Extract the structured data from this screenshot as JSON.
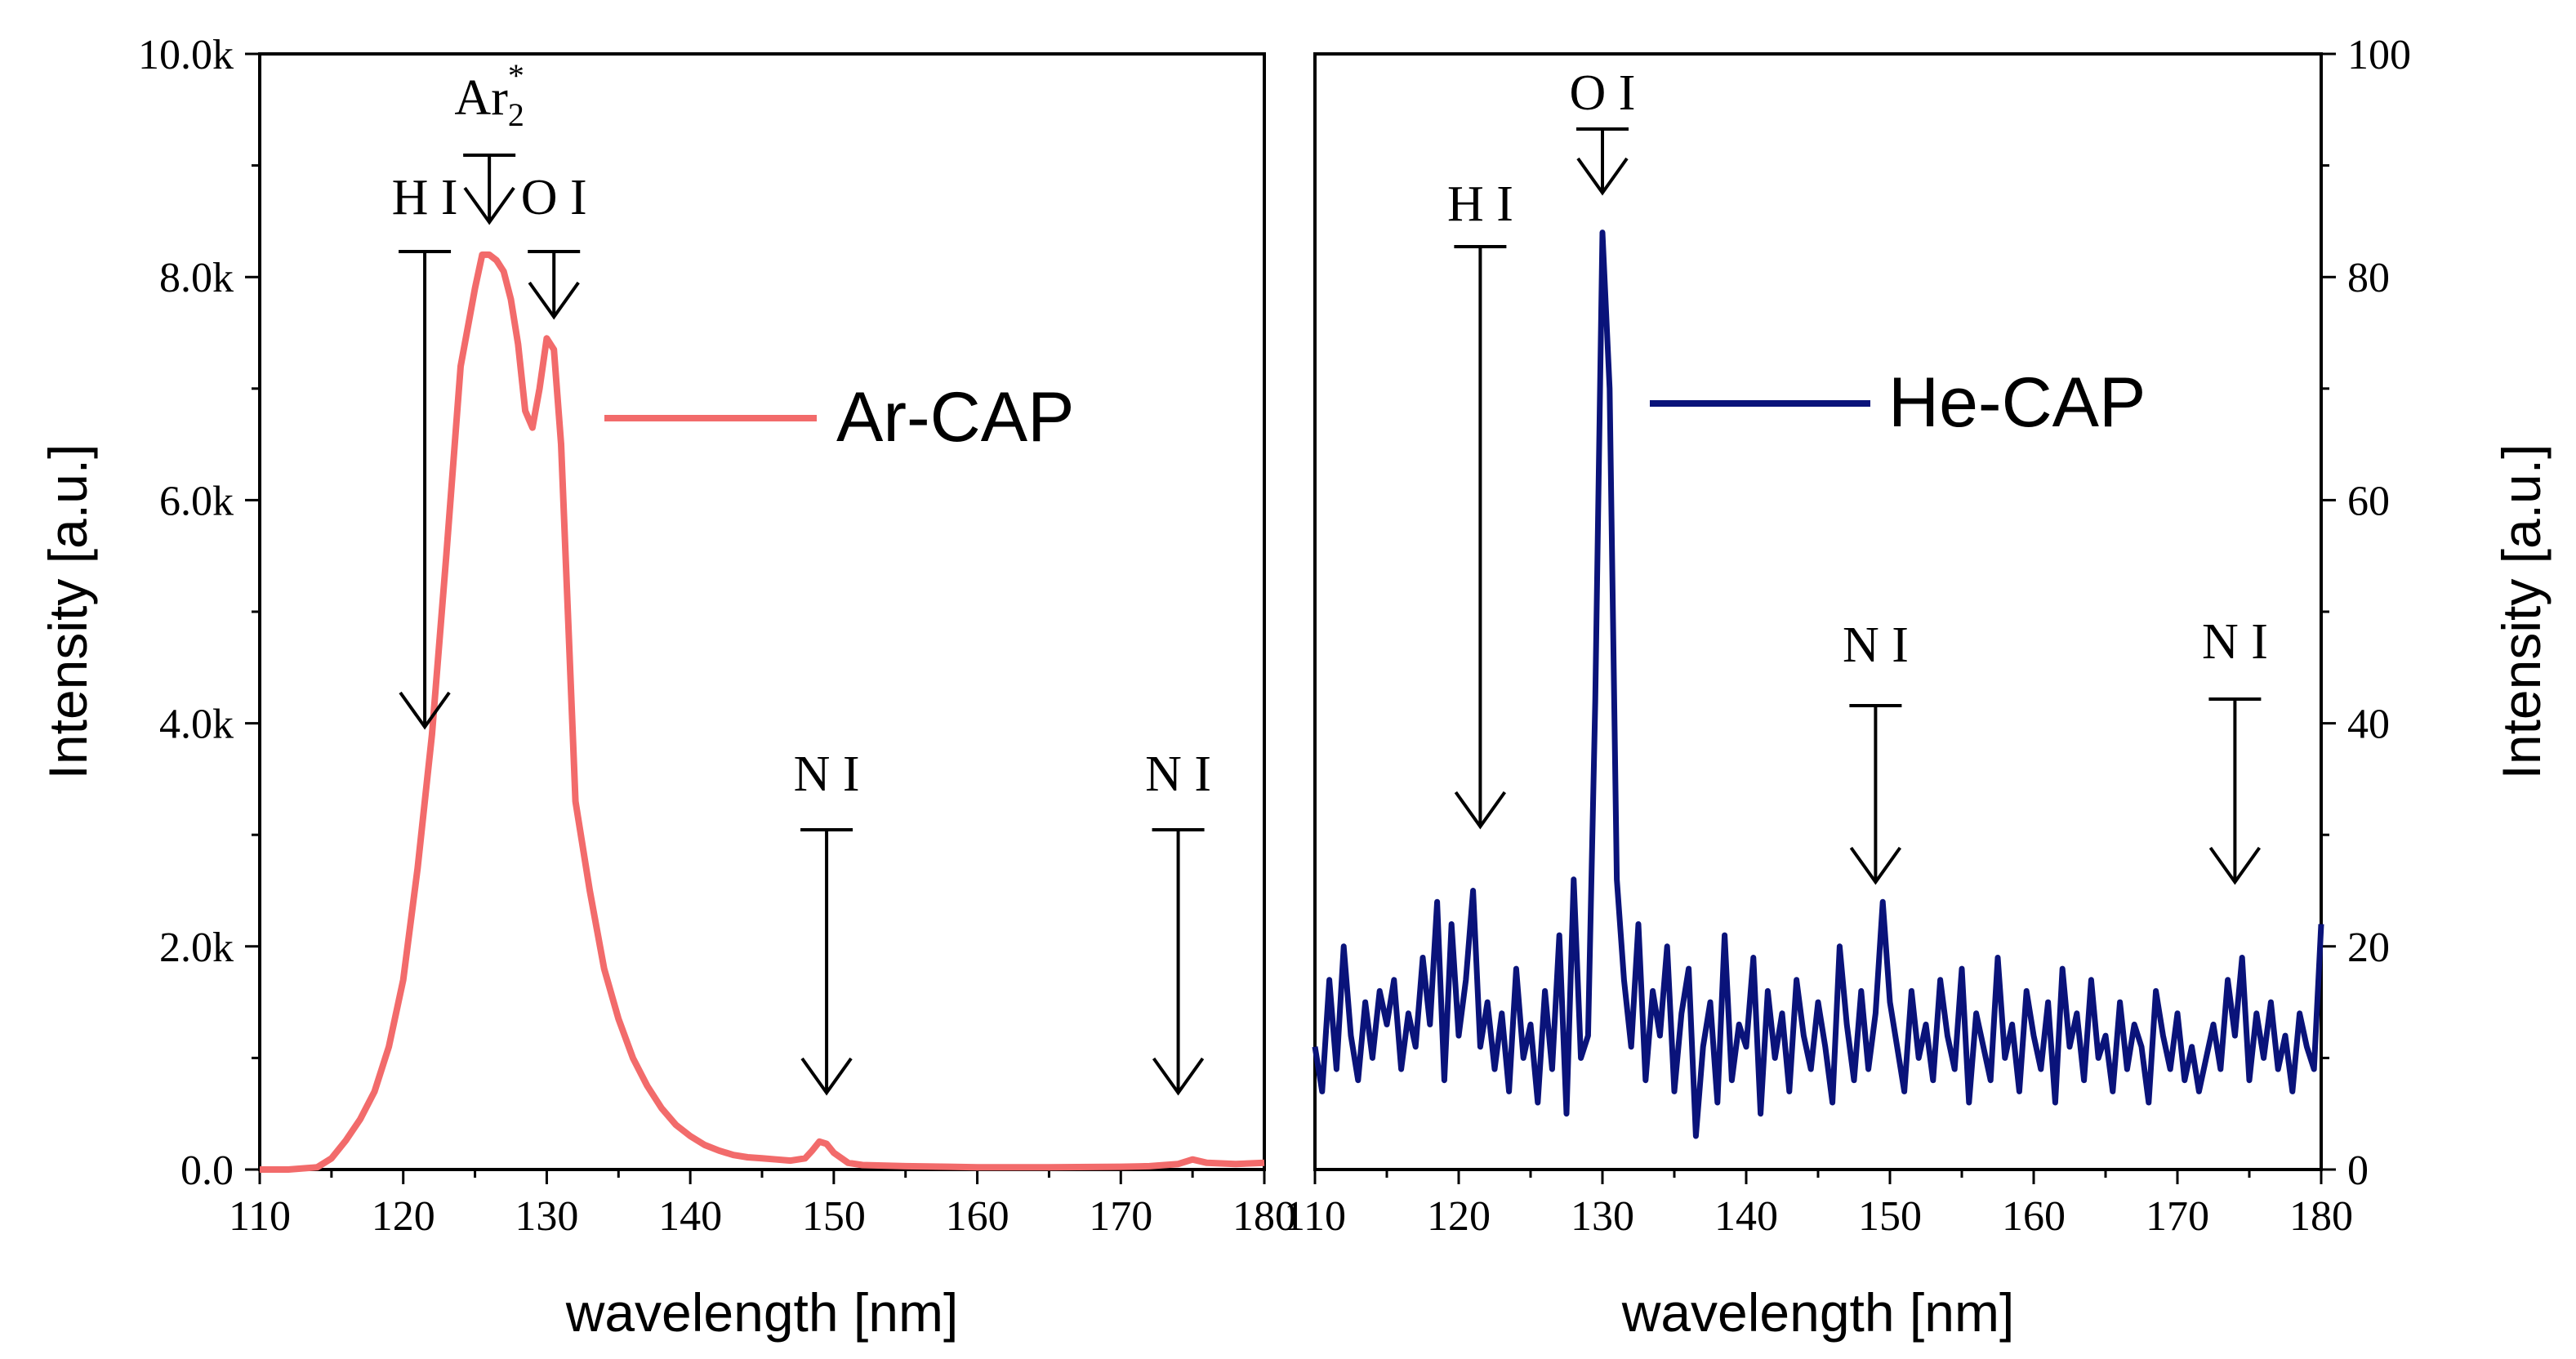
{
  "chart_data": [
    {
      "type": "line",
      "xlabel": "wavelength [nm]",
      "ylabel": "Intensity [a.u.]",
      "xlim": [
        110,
        180
      ],
      "ylim": [
        0,
        10000
      ],
      "x_ticks": [
        110,
        120,
        130,
        140,
        150,
        160,
        170,
        180
      ],
      "x_tick_labels": [
        "110",
        "120",
        "130",
        "140",
        "150",
        "160",
        "170",
        "180"
      ],
      "y_ticks": [
        0,
        2000,
        4000,
        6000,
        8000,
        10000
      ],
      "y_tick_labels": [
        "0.0",
        "2.0k",
        "4.0k",
        "6.0k",
        "8.0k",
        "10.0k"
      ],
      "y_axis_side": "left",
      "legend": {
        "label": "Ar-CAP",
        "placement": "top-right"
      },
      "series": [
        {
          "name": "Ar-CAP",
          "color": "#f26b6b",
          "x": [
            110,
            112,
            114,
            115,
            116,
            117,
            118,
            119,
            120,
            121,
            122,
            123,
            124,
            125,
            125.5,
            126,
            126.5,
            127,
            127.5,
            128,
            128.5,
            129,
            129.5,
            130,
            130.5,
            131,
            132,
            133,
            134,
            135,
            136,
            137,
            138,
            139,
            140,
            141,
            142,
            143,
            144,
            145,
            146,
            147,
            148,
            148.5,
            149,
            149.5,
            150,
            151,
            152,
            155,
            158,
            160,
            165,
            170,
            172,
            174,
            175,
            176,
            178,
            180
          ],
          "y": [
            0,
            0,
            20,
            100,
            260,
            450,
            700,
            1100,
            1700,
            2700,
            3900,
            5500,
            7200,
            7900,
            8200,
            8200,
            8150,
            8050,
            7800,
            7400,
            6800,
            6650,
            7000,
            7450,
            7350,
            6500,
            3300,
            2500,
            1800,
            1350,
            1000,
            750,
            550,
            400,
            300,
            220,
            170,
            130,
            110,
            100,
            90,
            80,
            100,
            170,
            250,
            230,
            150,
            60,
            40,
            30,
            25,
            20,
            20,
            25,
            30,
            50,
            90,
            60,
            50,
            60
          ]
        }
      ],
      "annotations": [
        {
          "label": "H I",
          "x": 121.5
        },
        {
          "label": "Ar",
          "subscript": "2",
          "superscript": "*",
          "x": 126
        },
        {
          "label": "O I",
          "x": 130.5
        },
        {
          "label": "N I",
          "x": 149.5
        },
        {
          "label": "N I",
          "x": 174
        }
      ]
    },
    {
      "type": "line",
      "xlabel": "wavelength [nm]",
      "ylabel": "Intensity [a.u.]",
      "xlim": [
        110,
        180
      ],
      "ylim": [
        0,
        100
      ],
      "x_ticks": [
        110,
        120,
        130,
        140,
        150,
        160,
        170,
        180
      ],
      "x_tick_labels": [
        "110",
        "120",
        "130",
        "140",
        "150",
        "160",
        "170",
        "180"
      ],
      "y_ticks": [
        0,
        20,
        40,
        60,
        80,
        100
      ],
      "y_tick_labels": [
        "0",
        "20",
        "40",
        "60",
        "80",
        "100"
      ],
      "y_axis_side": "right",
      "legend": {
        "label": "He-CAP",
        "placement": "top-right"
      },
      "series": [
        {
          "name": "He-CAP",
          "color": "#0a137a",
          "x": [
            110,
            110.5,
            111,
            111.5,
            112,
            112.5,
            113,
            113.5,
            114,
            114.5,
            115,
            115.5,
            116,
            116.5,
            117,
            117.5,
            118,
            118.5,
            119,
            119.5,
            120,
            120.5,
            121,
            121.5,
            122,
            122.5,
            123,
            123.5,
            124,
            124.5,
            125,
            125.5,
            126,
            126.5,
            127,
            127.5,
            128,
            128.5,
            129,
            129.5,
            130,
            130.5,
            131,
            131.5,
            132,
            132.5,
            133,
            133.5,
            134,
            134.5,
            135,
            135.5,
            136,
            136.5,
            137,
            137.5,
            138,
            138.5,
            139,
            139.5,
            140,
            140.5,
            141,
            141.5,
            142,
            142.5,
            143,
            143.5,
            144,
            144.5,
            145,
            145.5,
            146,
            146.5,
            147,
            147.5,
            148,
            148.5,
            149,
            149.5,
            150,
            150.5,
            151,
            151.5,
            152,
            152.5,
            153,
            153.5,
            154,
            154.5,
            155,
            155.5,
            156,
            156.5,
            157,
            157.5,
            158,
            158.5,
            159,
            159.5,
            160,
            160.5,
            161,
            161.5,
            162,
            162.5,
            163,
            163.5,
            164,
            164.5,
            165,
            165.5,
            166,
            166.5,
            167,
            167.5,
            168,
            168.5,
            169,
            169.5,
            170,
            170.5,
            171,
            171.5,
            172,
            172.5,
            173,
            173.5,
            174,
            174.5,
            175,
            175.5,
            176,
            176.5,
            177,
            177.5,
            178,
            178.5,
            179,
            179.5,
            180
          ],
          "y": [
            11,
            7,
            17,
            9,
            20,
            12,
            8,
            15,
            10,
            16,
            13,
            17,
            9,
            14,
            11,
            19,
            13,
            24,
            8,
            22,
            12,
            17,
            25,
            11,
            15,
            9,
            14,
            7,
            18,
            10,
            13,
            6,
            16,
            9,
            21,
            5,
            26,
            10,
            12,
            42,
            84,
            70,
            26,
            17,
            11,
            22,
            8,
            16,
            12,
            20,
            7,
            14,
            18,
            3,
            11,
            15,
            6,
            21,
            8,
            13,
            11,
            19,
            5,
            16,
            10,
            14,
            7,
            17,
            12,
            9,
            15,
            11,
            6,
            20,
            13,
            8,
            16,
            9,
            14,
            24,
            15,
            11,
            7,
            16,
            10,
            13,
            8,
            17,
            12,
            9,
            18,
            6,
            14,
            11,
            8,
            19,
            10,
            13,
            7,
            16,
            12,
            9,
            15,
            6,
            18,
            11,
            14,
            8,
            17,
            10,
            12,
            7,
            15,
            9,
            13,
            11,
            6,
            16,
            12,
            9,
            14,
            8,
            11,
            7,
            10,
            13,
            9,
            17,
            12,
            19,
            8,
            14,
            10,
            15,
            9,
            12,
            7,
            14,
            11,
            9,
            22
          ]
        }
      ],
      "annotations": [
        {
          "label": "H I",
          "x": 121.5
        },
        {
          "label": "O I",
          "x": 130
        },
        {
          "label": "N I",
          "x": 149
        },
        {
          "label": "N I",
          "x": 174
        }
      ]
    }
  ]
}
